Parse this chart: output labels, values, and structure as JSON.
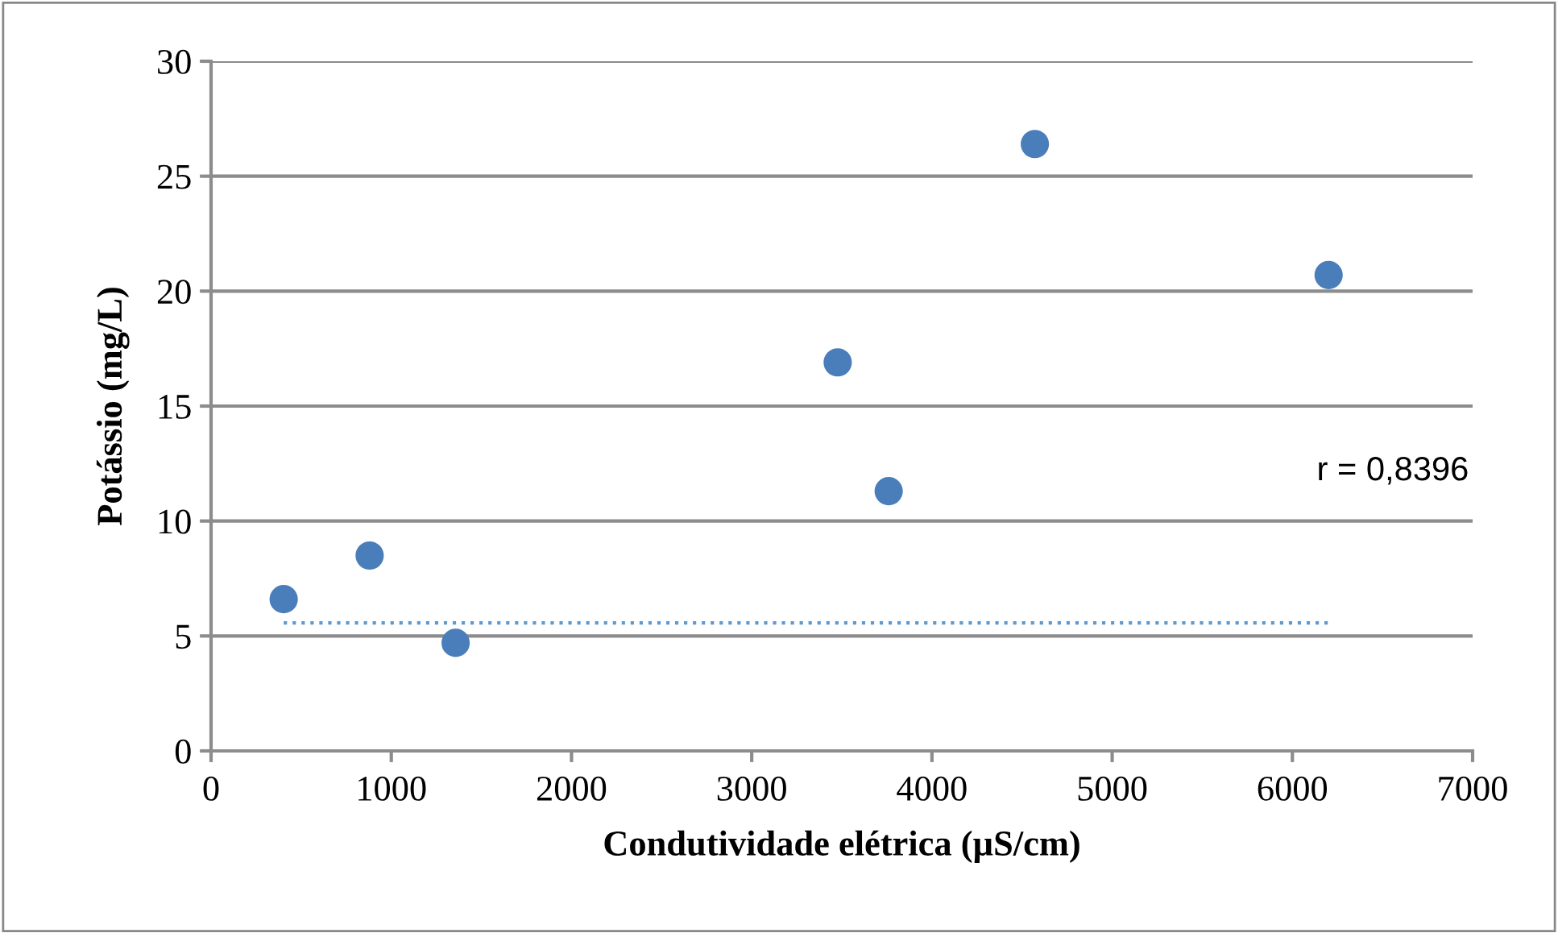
{
  "chart_data": {
    "type": "scatter",
    "xlabel": "Condutividade elétrica (µS/cm)",
    "ylabel": "Potássio (mg/L)",
    "xlim": [
      0,
      7000
    ],
    "xticks": [
      0,
      1000,
      2000,
      3000,
      4000,
      5000,
      6000,
      7000
    ],
    "ylim": [
      0,
      30
    ],
    "yticks": [
      0,
      5,
      10,
      15,
      20,
      25,
      30
    ],
    "grid": "y",
    "marker": "circle",
    "series": [
      {
        "color": "#4a7ebb",
        "x": [
          403,
          880,
          1357,
          3477,
          3760,
          4571,
          6201
        ],
        "values": [
          6.6,
          8.5,
          4.7,
          16.9,
          11.3,
          26.4,
          20.7
        ]
      },
      {
        "type": "line",
        "color": "#5b9bd5",
        "line_style": "dotted",
        "marker": "none",
        "x": [
          403,
          6201
        ],
        "values": [
          5.57,
          5.57
        ]
      }
    ],
    "annotations": [
      "r = 0,8396"
    ]
  }
}
